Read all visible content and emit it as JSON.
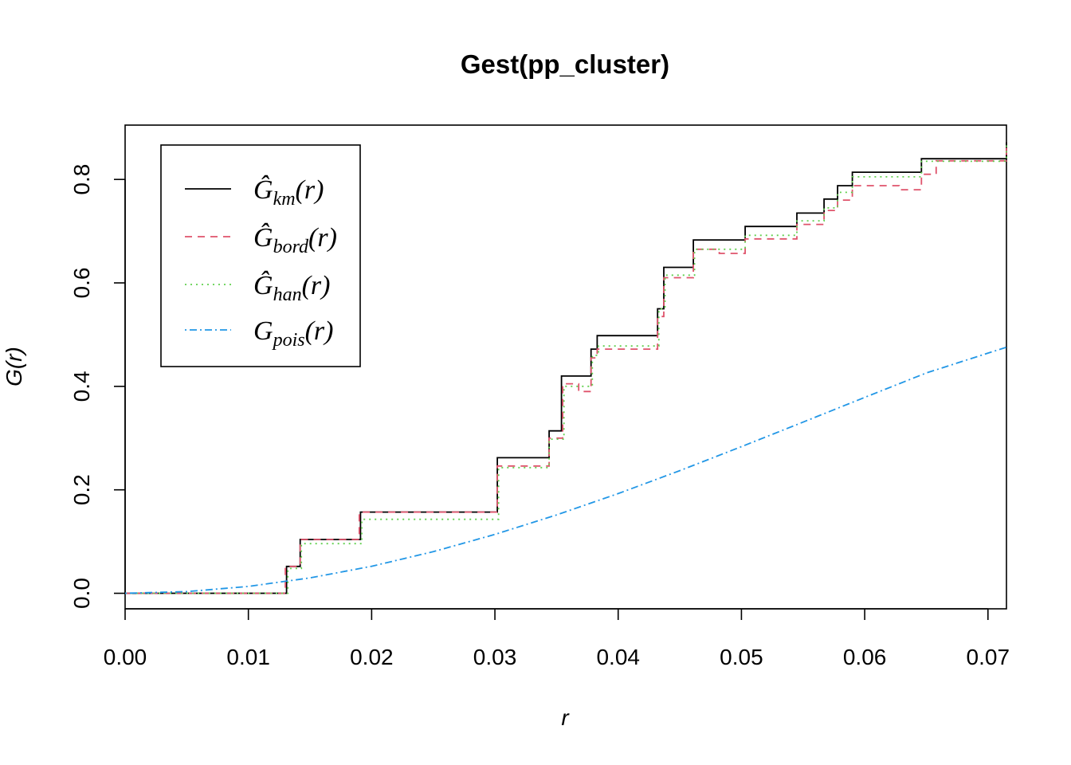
{
  "chart_data": {
    "type": "line",
    "title": "Gest(pp_cluster)",
    "xlabel": "r",
    "ylabel": "G(r)",
    "xlim": [
      0.0,
      0.0715
    ],
    "ylim": [
      -0.03,
      0.905
    ],
    "x_ticks": [
      "0.00",
      "0.01",
      "0.02",
      "0.03",
      "0.04",
      "0.05",
      "0.06",
      "0.07"
    ],
    "y_ticks": [
      "0.0",
      "0.2",
      "0.4",
      "0.6",
      "0.8"
    ],
    "legend_position": "top-left",
    "series": [
      {
        "key": "km",
        "legend_main": "Ĝ",
        "legend_sub": "km",
        "legend_arg": "(r)",
        "color": "#000000",
        "dash": "",
        "step": true,
        "points": [
          [
            0.0,
            0.0
          ],
          [
            0.0125,
            0.0
          ],
          [
            0.0131,
            0.052
          ],
          [
            0.0138,
            0.052
          ],
          [
            0.0142,
            0.104
          ],
          [
            0.0188,
            0.104
          ],
          [
            0.0191,
            0.157
          ],
          [
            0.0291,
            0.157
          ],
          [
            0.0302,
            0.262
          ],
          [
            0.0337,
            0.262
          ],
          [
            0.0344,
            0.314
          ],
          [
            0.0351,
            0.314
          ],
          [
            0.0354,
            0.42
          ],
          [
            0.0374,
            0.42
          ],
          [
            0.0378,
            0.472
          ],
          [
            0.0383,
            0.498
          ],
          [
            0.0427,
            0.498
          ],
          [
            0.0432,
            0.55
          ],
          [
            0.0437,
            0.63
          ],
          [
            0.0456,
            0.63
          ],
          [
            0.0461,
            0.683
          ],
          [
            0.0499,
            0.683
          ],
          [
            0.0503,
            0.709
          ],
          [
            0.0541,
            0.709
          ],
          [
            0.0545,
            0.735
          ],
          [
            0.0561,
            0.735
          ],
          [
            0.0567,
            0.762
          ],
          [
            0.0573,
            0.762
          ],
          [
            0.0578,
            0.788
          ],
          [
            0.0584,
            0.788
          ],
          [
            0.059,
            0.814
          ],
          [
            0.0641,
            0.814
          ],
          [
            0.0646,
            0.84
          ],
          [
            0.0712,
            0.84
          ],
          [
            0.0715,
            0.872
          ]
        ]
      },
      {
        "key": "bord",
        "legend_main": "Ĝ",
        "legend_sub": "bord",
        "legend_arg": "(r)",
        "color": "#DF536B",
        "dash": "9,7",
        "step": true,
        "points": [
          [
            0.0,
            0.0
          ],
          [
            0.0125,
            0.0
          ],
          [
            0.013,
            0.052
          ],
          [
            0.0138,
            0.052
          ],
          [
            0.0142,
            0.104
          ],
          [
            0.0188,
            0.104
          ],
          [
            0.019,
            0.157
          ],
          [
            0.0291,
            0.157
          ],
          [
            0.0302,
            0.246
          ],
          [
            0.0337,
            0.246
          ],
          [
            0.0344,
            0.3
          ],
          [
            0.0351,
            0.3
          ],
          [
            0.0355,
            0.405
          ],
          [
            0.0362,
            0.405
          ],
          [
            0.0368,
            0.39
          ],
          [
            0.0374,
            0.39
          ],
          [
            0.0378,
            0.455
          ],
          [
            0.0383,
            0.472
          ],
          [
            0.0427,
            0.472
          ],
          [
            0.0432,
            0.535
          ],
          [
            0.0437,
            0.61
          ],
          [
            0.0456,
            0.61
          ],
          [
            0.0461,
            0.665
          ],
          [
            0.0475,
            0.665
          ],
          [
            0.0482,
            0.657
          ],
          [
            0.0499,
            0.657
          ],
          [
            0.0503,
            0.685
          ],
          [
            0.0541,
            0.685
          ],
          [
            0.0545,
            0.713
          ],
          [
            0.0561,
            0.713
          ],
          [
            0.0567,
            0.74
          ],
          [
            0.0573,
            0.74
          ],
          [
            0.0578,
            0.76
          ],
          [
            0.0584,
            0.76
          ],
          [
            0.059,
            0.788
          ],
          [
            0.0622,
            0.788
          ],
          [
            0.0628,
            0.78
          ],
          [
            0.0641,
            0.78
          ],
          [
            0.0646,
            0.81
          ],
          [
            0.0652,
            0.81
          ],
          [
            0.0658,
            0.836
          ],
          [
            0.0712,
            0.836
          ],
          [
            0.0715,
            0.872
          ]
        ]
      },
      {
        "key": "han",
        "legend_main": "Ĝ",
        "legend_sub": "han",
        "legend_arg": "(r)",
        "color": "#61D04F",
        "dash": "2,5",
        "step": true,
        "points": [
          [
            0.0,
            0.0
          ],
          [
            0.0126,
            0.0
          ],
          [
            0.0132,
            0.048
          ],
          [
            0.0139,
            0.048
          ],
          [
            0.0143,
            0.096
          ],
          [
            0.0188,
            0.096
          ],
          [
            0.0192,
            0.143
          ],
          [
            0.0291,
            0.143
          ],
          [
            0.0303,
            0.243
          ],
          [
            0.0337,
            0.243
          ],
          [
            0.0344,
            0.298
          ],
          [
            0.0352,
            0.298
          ],
          [
            0.0356,
            0.4
          ],
          [
            0.0374,
            0.4
          ],
          [
            0.0379,
            0.46
          ],
          [
            0.0384,
            0.478
          ],
          [
            0.0427,
            0.478
          ],
          [
            0.0433,
            0.55
          ],
          [
            0.0438,
            0.615
          ],
          [
            0.0456,
            0.615
          ],
          [
            0.0462,
            0.665
          ],
          [
            0.0499,
            0.665
          ],
          [
            0.0503,
            0.692
          ],
          [
            0.0541,
            0.692
          ],
          [
            0.0545,
            0.72
          ],
          [
            0.0561,
            0.72
          ],
          [
            0.0567,
            0.745
          ],
          [
            0.0573,
            0.745
          ],
          [
            0.0578,
            0.775
          ],
          [
            0.0584,
            0.775
          ],
          [
            0.059,
            0.805
          ],
          [
            0.0641,
            0.805
          ],
          [
            0.0646,
            0.835
          ],
          [
            0.0712,
            0.835
          ],
          [
            0.0715,
            0.87
          ]
        ]
      },
      {
        "key": "pois",
        "legend_main": "G",
        "legend_sub": "pois",
        "legend_arg": "(r)",
        "color": "#2297E6",
        "dash": "2,4,9,4",
        "step": false,
        "points": [
          [
            0.0,
            0.0
          ],
          [
            0.005,
            0.0033
          ],
          [
            0.01,
            0.0133
          ],
          [
            0.015,
            0.0298
          ],
          [
            0.02,
            0.0523
          ],
          [
            0.025,
            0.0805
          ],
          [
            0.03,
            0.1138
          ],
          [
            0.035,
            0.1515
          ],
          [
            0.04,
            0.1928
          ],
          [
            0.045,
            0.2371
          ],
          [
            0.05,
            0.2834
          ],
          [
            0.055,
            0.3309
          ],
          [
            0.06,
            0.3787
          ],
          [
            0.065,
            0.426
          ],
          [
            0.0715,
            0.4757
          ]
        ]
      }
    ]
  }
}
